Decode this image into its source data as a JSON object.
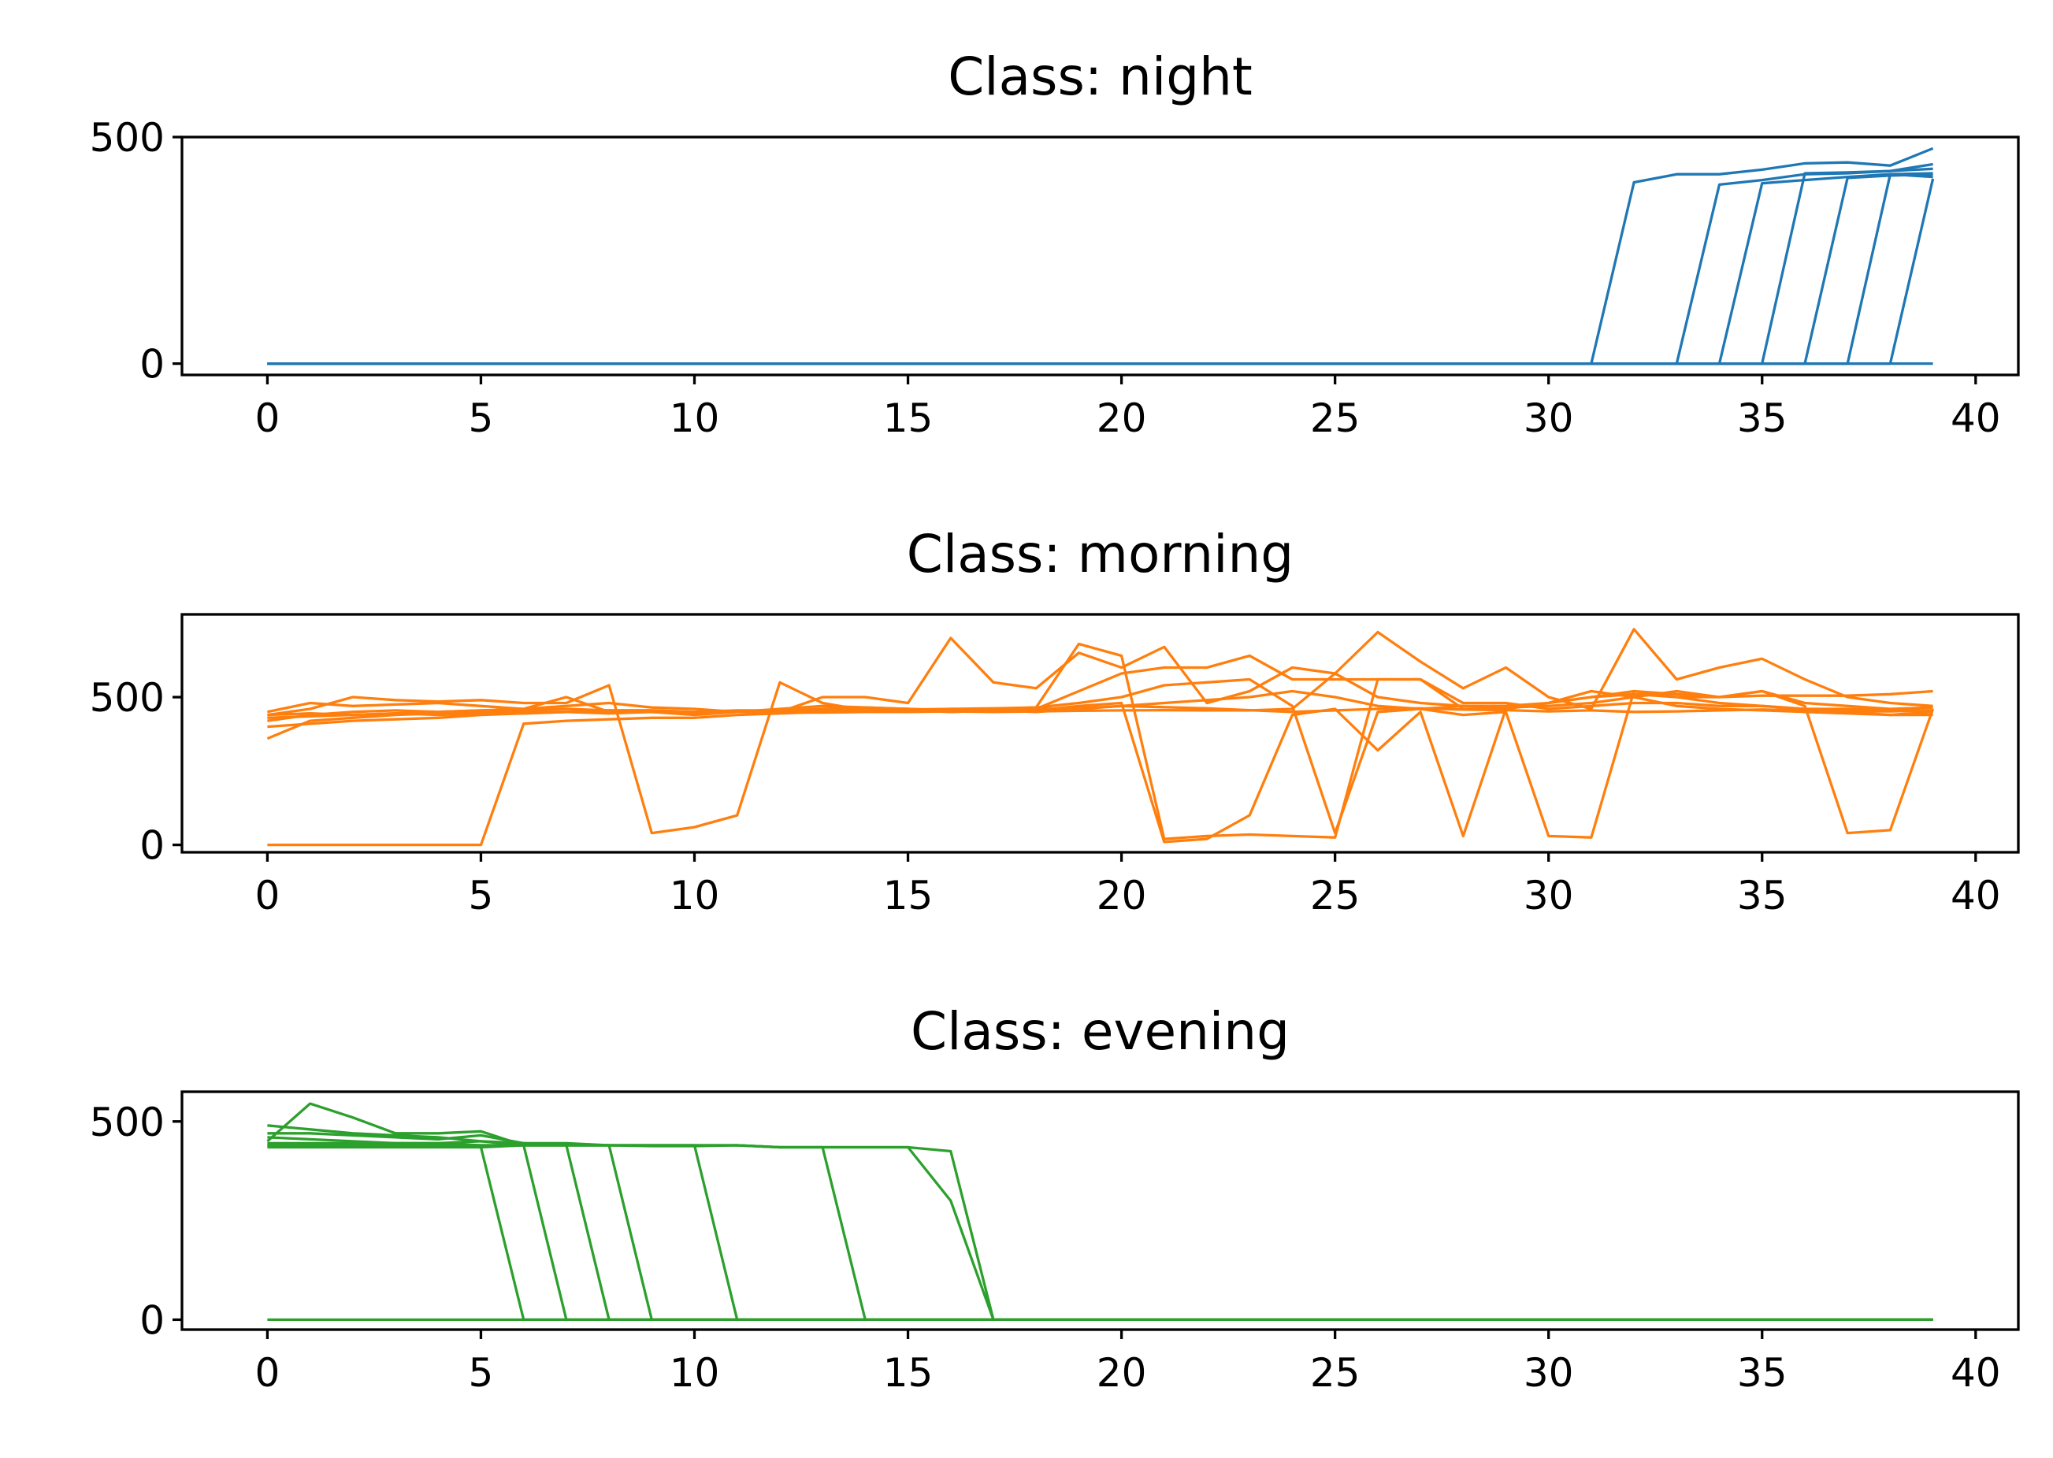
{
  "chart_data": [
    {
      "type": "line",
      "title": "Class: night",
      "color": "#1f77b4",
      "xlabel": "",
      "ylabel": "",
      "xlim": [
        -2,
        41
      ],
      "ylim": [
        -25,
        500
      ],
      "xticks": [
        0,
        5,
        10,
        15,
        20,
        25,
        30,
        35,
        40
      ],
      "yticks": [
        0,
        500
      ],
      "grid": false,
      "series": [
        {
          "x": [
            0,
            31,
            32,
            33,
            34,
            35,
            36,
            37,
            38,
            39
          ],
          "y": [
            0,
            0,
            400,
            418,
            418,
            428,
            442,
            444,
            437,
            475
          ]
        },
        {
          "x": [
            0,
            33,
            34,
            35,
            36,
            37,
            38,
            39
          ],
          "y": [
            0,
            0,
            395,
            405,
            418,
            420,
            425,
            430
          ]
        },
        {
          "x": [
            0,
            34,
            35,
            36,
            37,
            38,
            39
          ],
          "y": [
            0,
            0,
            398,
            405,
            412,
            418,
            420
          ]
        },
        {
          "x": [
            0,
            35,
            36,
            37,
            38,
            39
          ],
          "y": [
            0,
            0,
            420,
            422,
            425,
            440
          ]
        },
        {
          "x": [
            0,
            36,
            37,
            38,
            39
          ],
          "y": [
            0,
            0,
            410,
            415,
            418
          ]
        },
        {
          "x": [
            0,
            37,
            38,
            39
          ],
          "y": [
            0,
            0,
            418,
            412
          ]
        },
        {
          "x": [
            0,
            38,
            39
          ],
          "y": [
            0,
            0,
            408
          ]
        },
        {
          "x": [
            0,
            39
          ],
          "y": [
            0,
            0
          ]
        }
      ]
    },
    {
      "type": "line",
      "title": "Class: morning",
      "color": "#ff7f0e",
      "xlabel": "",
      "ylabel": "",
      "xlim": [
        -2,
        41
      ],
      "ylim": [
        -25,
        780
      ],
      "xticks": [
        0,
        5,
        10,
        15,
        20,
        25,
        30,
        35,
        40
      ],
      "yticks": [
        0,
        500
      ],
      "grid": false,
      "series": [
        {
          "x": [
            0,
            5,
            6,
            7,
            8,
            9,
            10,
            11,
            12,
            13,
            14,
            15,
            16,
            17,
            18,
            19,
            20,
            21,
            22,
            23,
            24,
            25,
            26,
            27,
            28,
            29,
            30,
            31,
            32,
            33,
            34,
            35,
            36,
            37,
            38,
            39
          ],
          "y": [
            0,
            0,
            410,
            420,
            425,
            430,
            430,
            440,
            445,
            450,
            452,
            455,
            460,
            458,
            460,
            462,
            470,
            466,
            462,
            456,
            450,
            455,
            460,
            462,
            458,
            456,
            452,
            455,
            450,
            452,
            455,
            458,
            455,
            452,
            452,
            455
          ]
        },
        {
          "x": [
            0,
            1,
            2,
            3,
            4,
            5,
            6,
            7,
            8,
            9,
            10,
            11,
            12,
            13,
            14,
            15,
            16,
            17,
            18,
            19,
            20,
            21,
            22,
            23,
            24,
            25,
            26,
            27,
            28,
            29,
            30,
            31,
            32,
            33,
            34,
            35,
            36,
            37,
            38,
            39
          ],
          "y": [
            450,
            480,
            470,
            475,
            480,
            470,
            460,
            500,
            450,
            450,
            440,
            450,
            460,
            470,
            465,
            460,
            455,
            460,
            465,
            680,
            640,
            20,
            30,
            35,
            30,
            25,
            560,
            560,
            460,
            460,
            480,
            520,
            500,
            520,
            500,
            520,
            470,
            40,
            50,
            460
          ]
        },
        {
          "x": [
            0,
            1,
            2,
            3,
            4,
            5,
            6,
            7,
            8,
            9,
            10,
            11,
            12,
            13,
            14,
            15,
            16,
            17,
            18,
            19,
            20,
            21,
            22,
            23,
            24,
            25,
            26,
            27,
            28,
            29,
            30,
            31,
            32,
            33,
            34,
            35,
            36,
            37,
            38,
            39
          ],
          "y": [
            440,
            460,
            500,
            490,
            485,
            490,
            480,
            480,
            540,
            40,
            60,
            100,
            550,
            480,
            455,
            460,
            450,
            455,
            450,
            460,
            470,
            480,
            490,
            500,
            520,
            500,
            470,
            460,
            440,
            450,
            30,
            25,
            520,
            500,
            480,
            470,
            460,
            450,
            440,
            450
          ]
        },
        {
          "x": [
            0,
            1,
            2,
            3,
            4,
            5,
            6,
            7,
            8,
            9,
            10,
            11,
            12,
            13,
            14,
            15,
            16,
            17,
            18,
            19,
            20,
            21,
            22,
            23,
            24,
            25,
            26,
            27,
            28,
            29,
            30,
            31,
            32,
            33,
            34,
            35,
            36,
            37,
            38,
            39
          ],
          "y": [
            420,
            440,
            450,
            455,
            450,
            455,
            460,
            470,
            480,
            465,
            460,
            450,
            450,
            500,
            500,
            480,
            700,
            550,
            530,
            650,
            600,
            670,
            480,
            520,
            600,
            580,
            720,
            620,
            530,
            600,
            500,
            460,
            730,
            560,
            600,
            630,
            560,
            500,
            480,
            470
          ]
        },
        {
          "x": [
            0,
            1,
            2,
            3,
            4,
            5,
            6,
            7,
            8,
            9,
            10,
            11,
            12,
            13,
            14,
            15,
            16,
            17,
            18,
            19,
            20,
            21,
            22,
            23,
            24,
            25,
            26,
            27,
            28,
            29,
            30,
            31,
            32,
            33,
            34,
            35,
            36,
            37,
            38,
            39
          ],
          "y": [
            360,
            420,
            430,
            440,
            445,
            450,
            445,
            450,
            455,
            455,
            450,
            455,
            455,
            460,
            465,
            460,
            455,
            460,
            455,
            470,
            480,
            10,
            20,
            100,
            440,
            460,
            320,
            450,
            30,
            460,
            480,
            500,
            520,
            510,
            500,
            520,
            480,
            470,
            460,
            465
          ]
        },
        {
          "x": [
            0,
            1,
            2,
            3,
            4,
            5,
            6,
            7,
            8,
            9,
            10,
            11,
            12,
            13,
            14,
            15,
            16,
            17,
            18,
            19,
            20,
            21,
            22,
            23,
            24,
            25,
            26,
            27,
            28,
            29,
            30,
            31,
            32,
            33,
            34,
            35,
            36,
            37,
            38,
            39
          ],
          "y": [
            400,
            410,
            420,
            425,
            430,
            440,
            445,
            450,
            455,
            455,
            450,
            450,
            448,
            448,
            450,
            450,
            452,
            450,
            452,
            454,
            455,
            456,
            455,
            455,
            460,
            580,
            500,
            480,
            470,
            470,
            480,
            500,
            510,
            500,
            500,
            505,
            505,
            505,
            510,
            520
          ]
        },
        {
          "x": [
            0,
            1,
            2,
            3,
            4,
            5,
            6,
            7,
            8,
            9,
            10,
            11,
            12,
            13,
            14,
            15,
            16,
            17,
            18,
            19,
            20,
            21,
            22,
            23,
            24,
            25,
            26,
            27,
            28,
            29,
            30,
            31,
            32,
            33,
            34,
            35,
            36,
            37,
            38,
            39
          ],
          "y": [
            430,
            435,
            440,
            445,
            450,
            455,
            455,
            460,
            455,
            450,
            448,
            450,
            452,
            455,
            455,
            458,
            460,
            462,
            465,
            480,
            500,
            540,
            550,
            560,
            470,
            40,
            450,
            460,
            470,
            465,
            470,
            480,
            500,
            470,
            460,
            455,
            450,
            445,
            440,
            440
          ]
        },
        {
          "x": [
            0,
            1,
            2,
            3,
            4,
            5,
            6,
            7,
            8,
            9,
            10,
            11,
            12,
            13,
            14,
            15,
            16,
            17,
            18,
            19,
            20,
            21,
            22,
            23,
            24,
            25,
            26,
            27,
            28,
            29,
            30,
            31,
            32,
            33,
            34,
            35,
            36,
            37,
            38,
            39
          ],
          "y": [
            440,
            445,
            440,
            445,
            440,
            445,
            450,
            450,
            445,
            450,
            445,
            450,
            455,
            450,
            452,
            455,
            450,
            455,
            460,
            520,
            580,
            600,
            600,
            640,
            560,
            560,
            560,
            560,
            480,
            480,
            460,
            470,
            480,
            480,
            470,
            470,
            460,
            460,
            455,
            455
          ]
        }
      ]
    },
    {
      "type": "line",
      "title": "Class: evening",
      "color": "#2ca02c",
      "xlabel": "",
      "ylabel": "",
      "xlim": [
        -2,
        41
      ],
      "ylim": [
        -25,
        575
      ],
      "xticks": [
        0,
        5,
        10,
        15,
        20,
        25,
        30,
        35,
        40
      ],
      "yticks": [
        0,
        500
      ],
      "grid": false,
      "series": [
        {
          "x": [
            0,
            1,
            2,
            3,
            4,
            5,
            6,
            7,
            8,
            9,
            10,
            11,
            12,
            13,
            14,
            15,
            16,
            17,
            39
          ],
          "y": [
            450,
            545,
            510,
            470,
            470,
            475,
            440,
            440,
            440,
            440,
            440,
            440,
            435,
            435,
            435,
            435,
            425,
            0,
            0
          ]
        },
        {
          "x": [
            0,
            1,
            2,
            3,
            4,
            5,
            6,
            7,
            8,
            9,
            10,
            11,
            12,
            13,
            14,
            15,
            16,
            17,
            39
          ],
          "y": [
            490,
            480,
            470,
            465,
            460,
            450,
            445,
            440,
            440,
            438,
            438,
            440,
            435,
            435,
            435,
            435,
            300,
            0,
            0
          ]
        },
        {
          "x": [
            0,
            1,
            2,
            3,
            4,
            5,
            6,
            7,
            8,
            9,
            10,
            11,
            12,
            13,
            14,
            39
          ],
          "y": [
            470,
            470,
            465,
            460,
            455,
            465,
            445,
            445,
            440,
            440,
            440,
            440,
            435,
            435,
            0,
            0
          ]
        },
        {
          "x": [
            0,
            1,
            2,
            3,
            4,
            5,
            6,
            7,
            8,
            9,
            10,
            11,
            39
          ],
          "y": [
            440,
            440,
            440,
            440,
            440,
            440,
            440,
            440,
            440,
            440,
            440,
            0,
            0
          ]
        },
        {
          "x": [
            0,
            1,
            2,
            3,
            4,
            5,
            6,
            7,
            8,
            9,
            39
          ],
          "y": [
            445,
            445,
            445,
            445,
            445,
            440,
            440,
            440,
            440,
            0,
            0
          ]
        },
        {
          "x": [
            0,
            1,
            2,
            3,
            4,
            5,
            6,
            7,
            8,
            39
          ],
          "y": [
            460,
            455,
            450,
            445,
            445,
            450,
            440,
            440,
            0,
            0
          ]
        },
        {
          "x": [
            0,
            1,
            2,
            3,
            4,
            5,
            6,
            7,
            39
          ],
          "y": [
            435,
            435,
            435,
            435,
            435,
            435,
            440,
            0,
            0
          ]
        },
        {
          "x": [
            0,
            1,
            2,
            3,
            4,
            5,
            6,
            39
          ],
          "y": [
            440,
            440,
            440,
            440,
            440,
            435,
            0,
            0
          ]
        },
        {
          "x": [
            0,
            39
          ],
          "y": [
            0,
            0
          ]
        }
      ]
    }
  ]
}
